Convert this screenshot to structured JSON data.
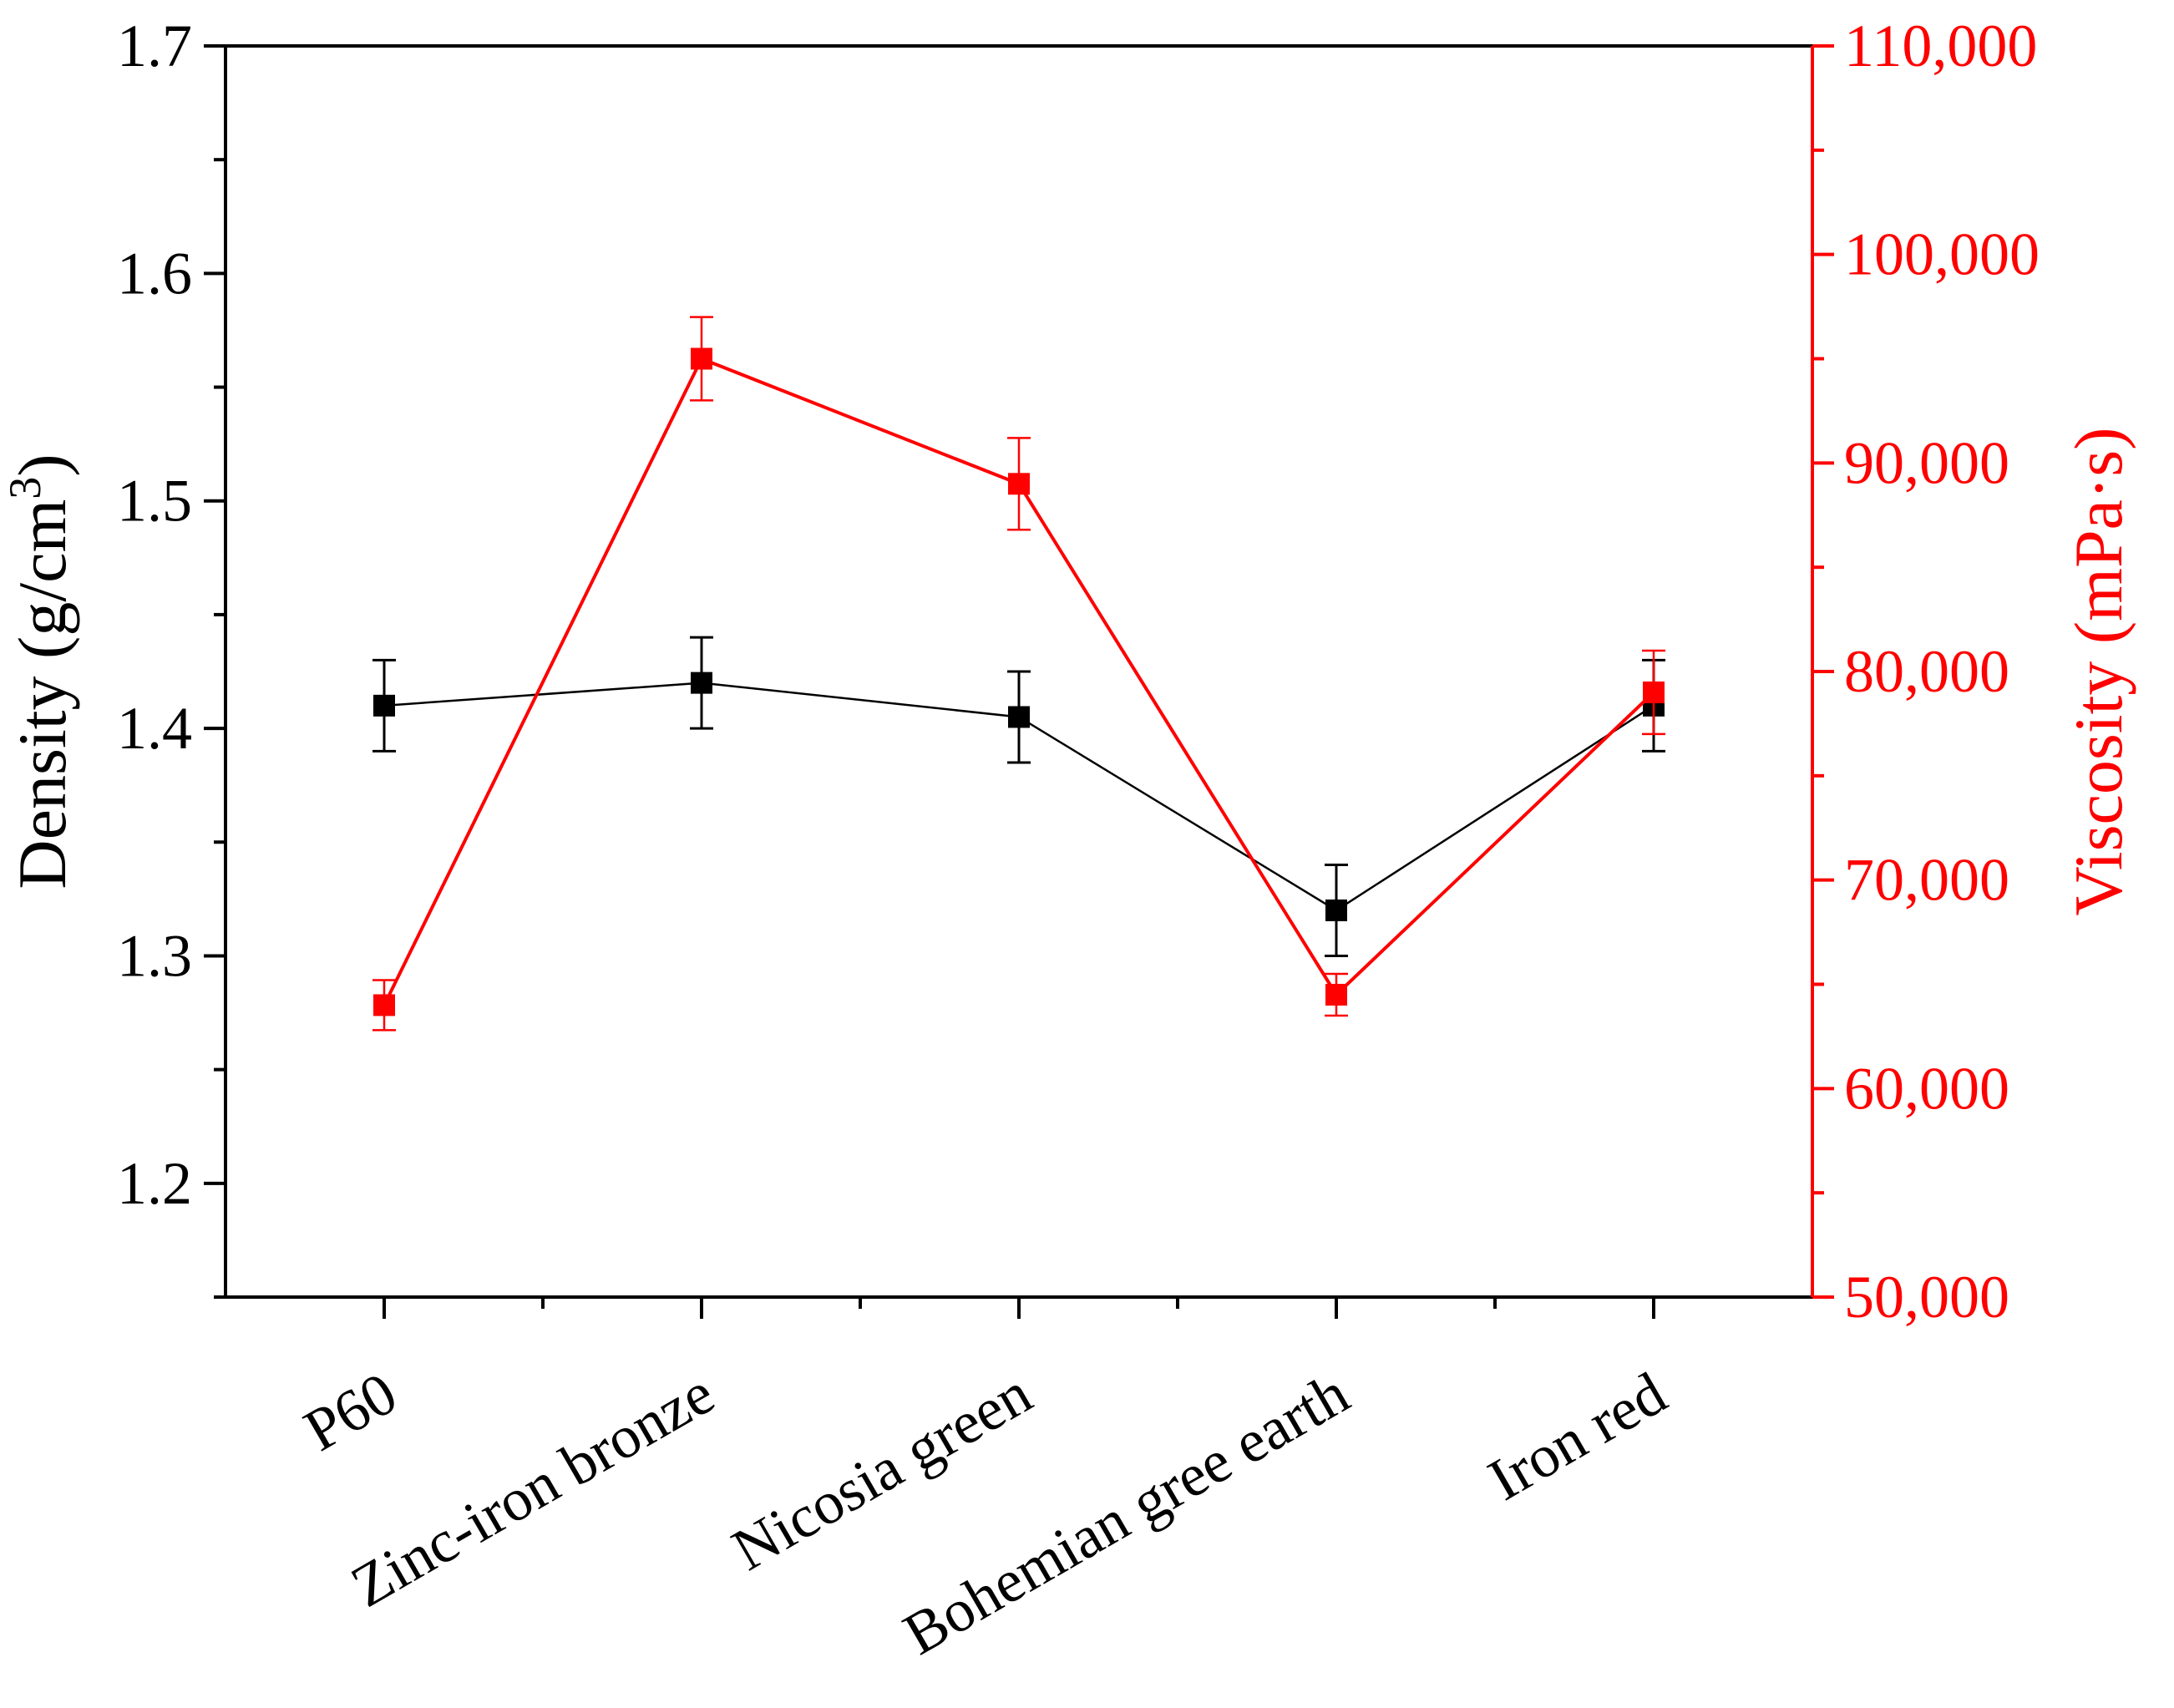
{
  "chart_data": {
    "type": "line",
    "categories": [
      "P60",
      "Zinc-iron bronze",
      "Nicosia green",
      "Bohemian gree earth",
      "Iron red"
    ],
    "left_axis": {
      "title_main": "Density (g/cm",
      "title_sup": "3",
      "title_close": ")",
      "range": [
        1.15,
        1.7
      ],
      "ticks": [
        1.2,
        1.3,
        1.4,
        1.5,
        1.6,
        1.7
      ],
      "tick_labels": [
        "1.2",
        "1.3",
        "1.4",
        "1.5",
        "1.6",
        "1.7"
      ],
      "color": "#000000"
    },
    "right_axis": {
      "title": "Viscosity (mPa·s)",
      "range": [
        50000,
        110000
      ],
      "ticks": [
        50000,
        60000,
        70000,
        80000,
        90000,
        100000,
        110000
      ],
      "tick_labels": [
        "50,000",
        "60,000",
        "70,000",
        "80,000",
        "90,000",
        "100,000",
        "110,000"
      ],
      "color": "#ff0000"
    },
    "series": [
      {
        "axis": "left",
        "color": "#000000",
        "values": [
          1.41,
          1.42,
          1.405,
          1.32,
          1.41
        ],
        "errors": [
          0.02,
          0.02,
          0.02,
          0.02,
          0.02
        ]
      },
      {
        "axis": "right",
        "color": "#ff0000",
        "values": [
          64000,
          95000,
          89000,
          64500,
          79000
        ],
        "errors": [
          1200,
          2000,
          2200,
          1000,
          2000
        ]
      }
    ],
    "grid": false,
    "legend": "none"
  }
}
